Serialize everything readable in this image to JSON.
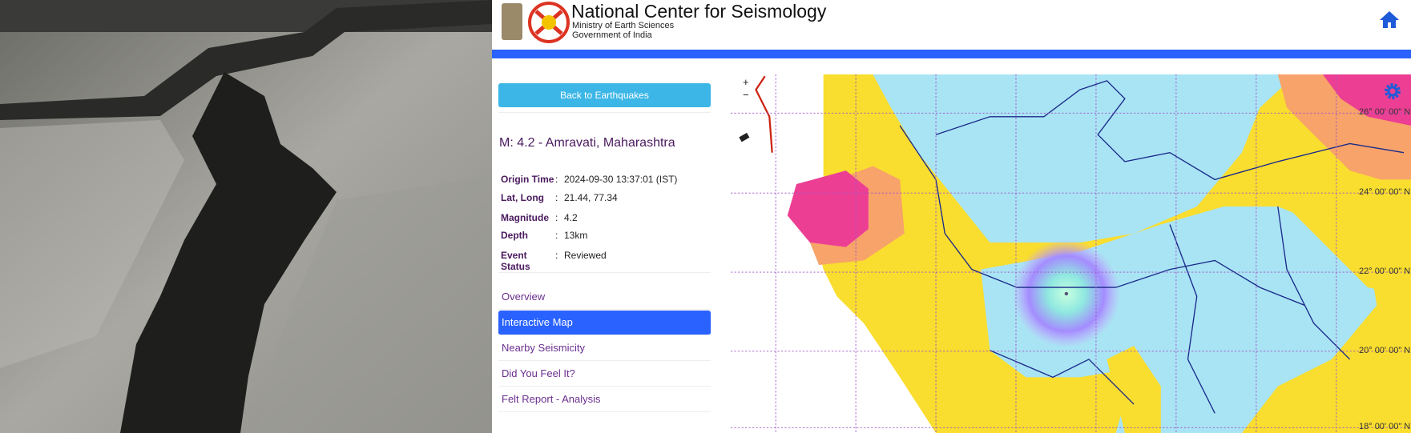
{
  "header": {
    "title": "National Center for Seismology",
    "subtitle_1": "Ministry of Earth Sciences",
    "subtitle_2": "Government of India"
  },
  "sidebar": {
    "back_button": "Back to Earthquakes",
    "event_title": "M: 4.2 - Amravati, Maharashtra",
    "separator": ":",
    "details": [
      {
        "label": "Origin Time",
        "value": "2024-09-30 13:37:01 (IST)"
      },
      {
        "label": "Lat, Long",
        "value": "21.44, 77.34"
      },
      {
        "label": "Magnitude",
        "value": "4.2"
      },
      {
        "label": "Depth",
        "value": "13km"
      },
      {
        "label": "Event Status",
        "value": "Reviewed"
      }
    ],
    "nav": [
      "Overview",
      "Interactive Map",
      "Nearby Seismicity",
      "Did You Feel It?",
      "Felt Report - Analysis"
    ],
    "active_nav": 1
  },
  "map": {
    "zoom_in": "+",
    "zoom_out": "−",
    "lat_labels": [
      "26° 00' 00\" N",
      "24° 00' 00\" N",
      "22° 00' 00\" N",
      "20° 00' 00\" N",
      "18° 00' 00\" N"
    ]
  }
}
